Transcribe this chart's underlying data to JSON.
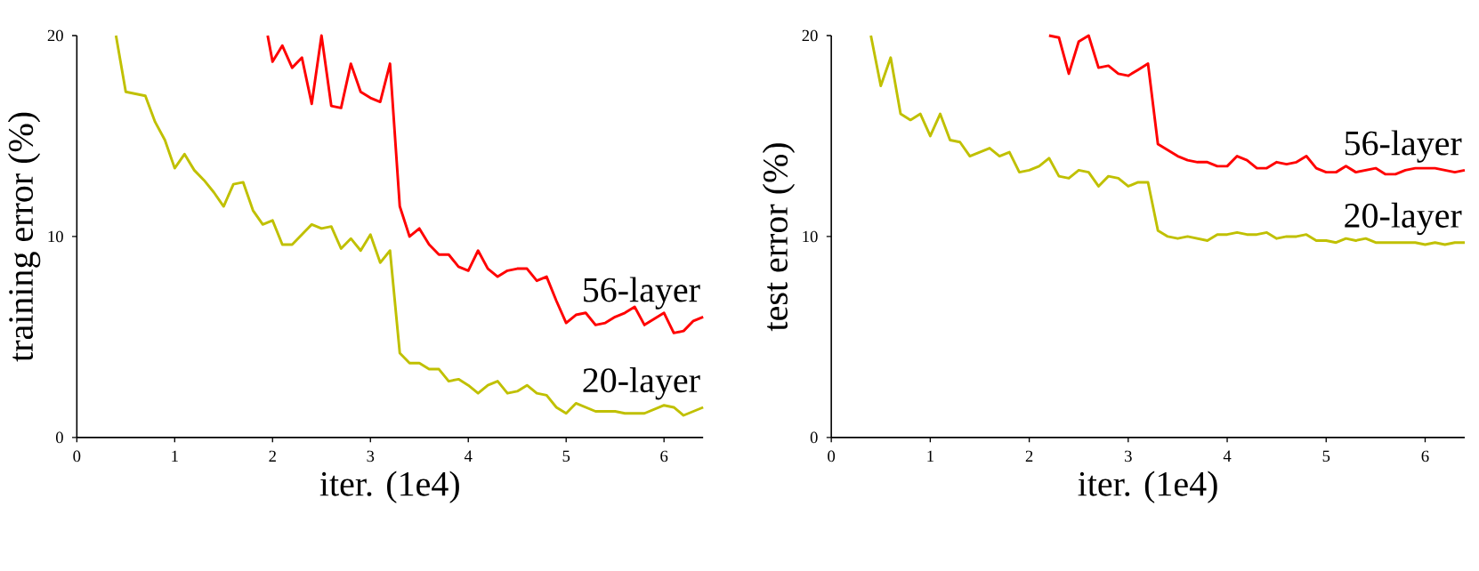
{
  "chart_data": [
    {
      "type": "line",
      "xlabel": "iter. (1e4)",
      "ylabel": "training error (%)",
      "xlim": [
        0,
        6.4
      ],
      "ylim": [
        0,
        20
      ],
      "xticks": [
        0,
        1,
        2,
        3,
        4,
        5,
        6
      ],
      "yticks": [
        0,
        10,
        20
      ],
      "series": [
        {
          "name": "56-layer",
          "color": "#ff0000",
          "x": [
            1.95,
            2.0,
            2.1,
            2.2,
            2.3,
            2.4,
            2.5,
            2.6,
            2.7,
            2.8,
            2.9,
            3.0,
            3.1,
            3.2,
            3.3,
            3.4,
            3.5,
            3.6,
            3.7,
            3.8,
            3.9,
            4.0,
            4.1,
            4.2,
            4.3,
            4.4,
            4.5,
            4.6,
            4.7,
            4.8,
            4.9,
            5.0,
            5.1,
            5.2,
            5.3,
            5.4,
            5.5,
            5.6,
            5.7,
            5.8,
            5.9,
            6.0,
            6.1,
            6.2,
            6.3,
            6.4
          ],
          "values": [
            20,
            18.7,
            19.5,
            18.4,
            18.9,
            16.6,
            20.0,
            16.5,
            16.4,
            18.6,
            17.2,
            16.9,
            16.7,
            18.6,
            11.5,
            10.0,
            10.4,
            9.6,
            9.1,
            9.1,
            8.5,
            8.3,
            9.3,
            8.4,
            8.0,
            8.3,
            8.4,
            8.4,
            7.8,
            8.0,
            6.8,
            5.7,
            6.1,
            6.2,
            5.6,
            5.7,
            6.0,
            6.2,
            6.5,
            5.6,
            5.9,
            6.2,
            5.2,
            5.3,
            5.8,
            6.0
          ]
        },
        {
          "name": "20-layer",
          "color": "#c0c000",
          "x": [
            0.4,
            0.5,
            0.7,
            0.8,
            0.9,
            1.0,
            1.1,
            1.2,
            1.3,
            1.4,
            1.5,
            1.6,
            1.7,
            1.8,
            1.9,
            2.0,
            2.1,
            2.2,
            2.3,
            2.4,
            2.5,
            2.6,
            2.7,
            2.8,
            2.9,
            3.0,
            3.1,
            3.2,
            3.3,
            3.4,
            3.5,
            3.6,
            3.7,
            3.8,
            3.9,
            4.0,
            4.1,
            4.2,
            4.3,
            4.4,
            4.5,
            4.6,
            4.7,
            4.8,
            4.9,
            5.0,
            5.1,
            5.2,
            5.3,
            5.4,
            5.5,
            5.6,
            5.7,
            5.8,
            5.9,
            6.0,
            6.1,
            6.2,
            6.3,
            6.4
          ],
          "values": [
            20,
            17.2,
            17.0,
            15.7,
            14.8,
            13.4,
            14.1,
            13.3,
            12.8,
            12.2,
            11.5,
            12.6,
            12.7,
            11.3,
            10.6,
            10.8,
            9.6,
            9.6,
            10.1,
            10.6,
            10.4,
            10.5,
            9.4,
            9.9,
            9.3,
            10.1,
            8.7,
            9.3,
            4.2,
            3.7,
            3.7,
            3.4,
            3.4,
            2.8,
            2.9,
            2.6,
            2.2,
            2.6,
            2.8,
            2.2,
            2.3,
            2.6,
            2.2,
            2.1,
            1.5,
            1.2,
            1.7,
            1.5,
            1.3,
            1.3,
            1.3,
            1.2,
            1.2,
            1.2,
            1.4,
            1.6,
            1.5,
            1.1,
            1.3,
            1.5
          ]
        }
      ]
    },
    {
      "type": "line",
      "xlabel": "iter. (1e4)",
      "ylabel": "test error (%)",
      "xlim": [
        0,
        6.4
      ],
      "ylim": [
        0,
        20
      ],
      "xticks": [
        0,
        1,
        2,
        3,
        4,
        5,
        6
      ],
      "yticks": [
        0,
        10,
        20
      ],
      "series": [
        {
          "name": "56-layer",
          "color": "#ff0000",
          "x": [
            2.2,
            2.3,
            2.4,
            2.5,
            2.6,
            2.7,
            2.8,
            2.9,
            3.0,
            3.1,
            3.2,
            3.3,
            3.4,
            3.5,
            3.6,
            3.7,
            3.8,
            3.9,
            4.0,
            4.1,
            4.2,
            4.3,
            4.4,
            4.5,
            4.6,
            4.7,
            4.8,
            4.9,
            5.0,
            5.1,
            5.2,
            5.3,
            5.4,
            5.5,
            5.6,
            5.7,
            5.8,
            5.9,
            6.0,
            6.1,
            6.2,
            6.3,
            6.4
          ],
          "values": [
            20.0,
            19.9,
            18.1,
            19.7,
            20.0,
            18.4,
            18.5,
            18.1,
            18.0,
            18.3,
            18.6,
            14.6,
            14.3,
            14.0,
            13.8,
            13.7,
            13.7,
            13.5,
            13.5,
            14.0,
            13.8,
            13.4,
            13.4,
            13.7,
            13.6,
            13.7,
            14.0,
            13.4,
            13.2,
            13.2,
            13.5,
            13.2,
            13.3,
            13.4,
            13.1,
            13.1,
            13.3,
            13.4,
            13.4,
            13.4,
            13.3,
            13.2,
            13.3
          ]
        },
        {
          "name": "20-layer",
          "color": "#c0c000",
          "x": [
            0.4,
            0.5,
            0.6,
            0.7,
            0.8,
            0.9,
            1.0,
            1.1,
            1.2,
            1.3,
            1.4,
            1.5,
            1.6,
            1.7,
            1.8,
            1.9,
            2.0,
            2.1,
            2.2,
            2.3,
            2.4,
            2.5,
            2.6,
            2.7,
            2.8,
            2.9,
            3.0,
            3.1,
            3.2,
            3.3,
            3.4,
            3.5,
            3.6,
            3.7,
            3.8,
            3.9,
            4.0,
            4.1,
            4.2,
            4.3,
            4.4,
            4.5,
            4.6,
            4.7,
            4.8,
            4.9,
            5.0,
            5.1,
            5.2,
            5.3,
            5.4,
            5.5,
            5.6,
            5.7,
            5.8,
            5.9,
            6.0,
            6.1,
            6.2,
            6.3,
            6.4
          ],
          "values": [
            20,
            17.5,
            18.9,
            16.1,
            15.8,
            16.1,
            15.0,
            16.1,
            14.8,
            14.7,
            14.0,
            14.2,
            14.4,
            14.0,
            14.2,
            13.2,
            13.3,
            13.5,
            13.9,
            13.0,
            12.9,
            13.3,
            13.2,
            12.5,
            13.0,
            12.9,
            12.5,
            12.7,
            12.7,
            10.3,
            10.0,
            9.9,
            10.0,
            9.9,
            9.8,
            10.1,
            10.1,
            10.2,
            10.1,
            10.1,
            10.2,
            9.9,
            10.0,
            10.0,
            10.1,
            9.8,
            9.8,
            9.7,
            9.9,
            9.8,
            9.9,
            9.7,
            9.7,
            9.7,
            9.7,
            9.7,
            9.6,
            9.7,
            9.6,
            9.7,
            9.7
          ]
        }
      ]
    }
  ]
}
